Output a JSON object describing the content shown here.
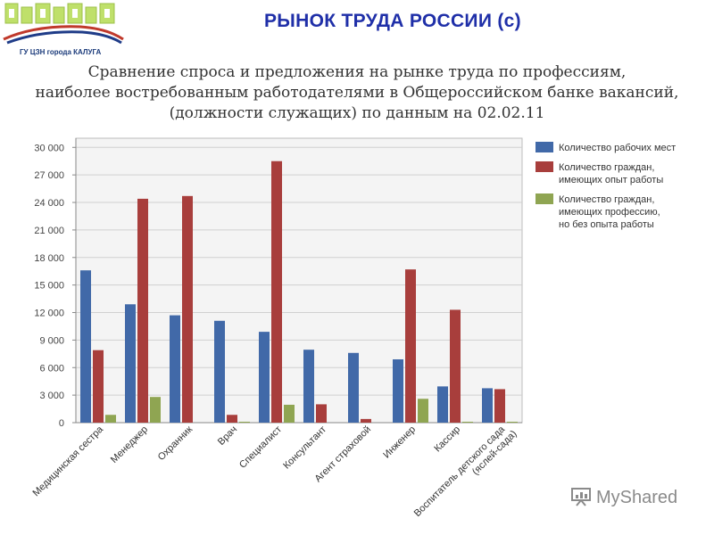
{
  "header": {
    "title": "РЫНОК ТРУДА РОССИИ (с)",
    "logo_caption": "ГУ ЦЗН города КАЛУГА"
  },
  "subtitle_lines": [
    "Сравнение спроса и предложения на рынке труда по профессиям,",
    "наиболее востребованным работодателями в Общероссийском банке вакансий,",
    "(должности служащих) по данным на 02.02.11"
  ],
  "watermark": "MyShared",
  "colors": {
    "vacancies": "#4169A8",
    "experienced": "#A83E3C",
    "no_experience": "#8FA552",
    "plot_bg": "#F4F4F4",
    "grid": "#D0D0D0"
  },
  "chart_data": {
    "type": "bar",
    "categories": [
      [
        "Медицинская сестра"
      ],
      [
        "Менеджер"
      ],
      [
        "Охранник"
      ],
      [
        "Врач"
      ],
      [
        "Специалист"
      ],
      [
        "Консультант"
      ],
      [
        "Агент страховой"
      ],
      [
        "Инженер"
      ],
      [
        "Кассир"
      ],
      [
        "Воспитатель детского сада",
        "(яслей-сада)"
      ]
    ],
    "series": [
      {
        "name": "Количество рабочих мест",
        "color": "#4169A8",
        "values": [
          16600,
          12900,
          11700,
          11100,
          9900,
          7950,
          7600,
          6900,
          3950,
          3750
        ]
      },
      {
        "name": [
          "Количество граждан,",
          "имеющих опыт работы"
        ],
        "color": "#A83E3C",
        "values": [
          7900,
          24400,
          24700,
          850,
          28500,
          2000,
          400,
          16700,
          12300,
          3650
        ]
      },
      {
        "name": [
          "Количество граждан,",
          "имеющих профессию,",
          "но без опыта работы"
        ],
        "color": "#8FA552",
        "values": [
          850,
          2800,
          0,
          100,
          1950,
          0,
          0,
          2600,
          100,
          100
        ]
      }
    ],
    "ylim": [
      0,
      31000
    ],
    "yticks": [
      "0",
      "3 000",
      "6 000",
      "9 000",
      "12 000",
      "15 000",
      "18 000",
      "21 000",
      "24 000",
      "27 000",
      "30 000"
    ],
    "ytick_values": [
      0,
      3000,
      6000,
      9000,
      12000,
      15000,
      18000,
      21000,
      24000,
      27000,
      30000
    ],
    "grid": true,
    "legend": "top-right"
  }
}
